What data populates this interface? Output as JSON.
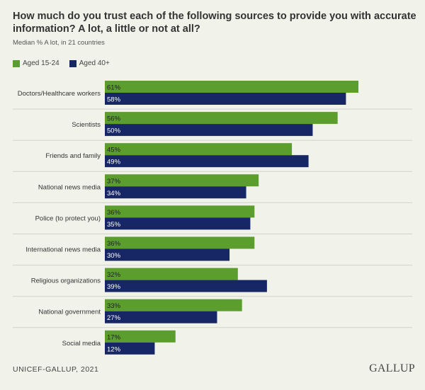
{
  "title": "How much do you trust each of the following sources to provide you with accurate information? A lot, a little or not at all?",
  "subtitle": "Median % A lot, in 21 countries",
  "source": "UNICEF-GALLUP, 2021",
  "logo": "GALLUP",
  "colors": {
    "series_young": "#5c9e2e",
    "series_old": "#172765",
    "gridline": "#d0d3c8",
    "text": "#333333"
  },
  "chart_data": {
    "type": "bar",
    "orientation": "horizontal",
    "categories": [
      "Doctors/Healthcare workers",
      "Scientists",
      "Friends and family",
      "National news media",
      "Police (to protect you)",
      "International news media",
      "Religious organizations",
      "National government",
      "Social media"
    ],
    "series": [
      {
        "name": "Aged 15-24",
        "values": [
          61,
          56,
          45,
          37,
          36,
          36,
          32,
          33,
          17
        ]
      },
      {
        "name": "Aged 40+",
        "values": [
          58,
          50,
          49,
          34,
          35,
          30,
          39,
          27,
          12
        ]
      }
    ],
    "value_suffix": "%",
    "xlim": [
      0,
      100
    ],
    "legend_position": "top-left"
  }
}
